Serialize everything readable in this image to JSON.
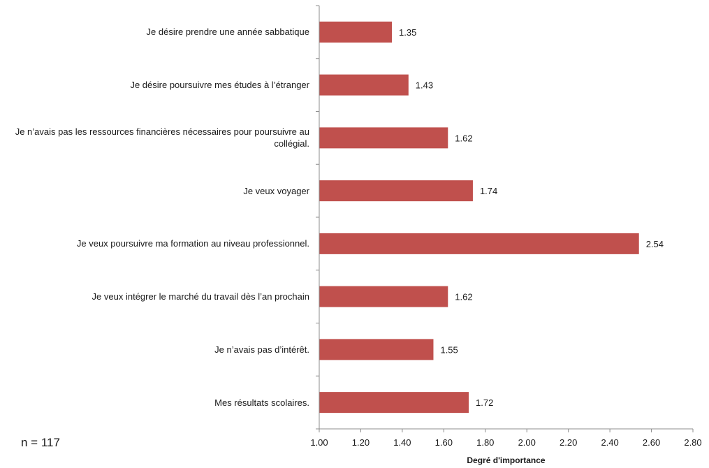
{
  "chart_data": {
    "type": "bar",
    "orientation": "horizontal",
    "categories": [
      "Je désire prendre une année sabbatique",
      "Je désire poursuivre mes études à l’étranger",
      "Je n’avais pas les ressources financières nécessaires pour poursuivre au collégial.",
      "Je veux voyager",
      "Je veux poursuivre ma formation au niveau professionnel.",
      "Je veux intégrer le marché du travail dès l’an prochain",
      "Je n’avais pas d’intérêt.",
      "Mes résultats scolaires."
    ],
    "values": [
      1.35,
      1.43,
      1.62,
      1.74,
      2.54,
      1.62,
      1.55,
      1.72
    ],
    "data_labels": [
      "1.35",
      "1.43",
      "1.62",
      "1.74",
      "2.54",
      "1.62",
      "1.55",
      "1.72"
    ],
    "xlabel": "Degré d'importance",
    "ylabel": "",
    "xlim": [
      1.0,
      2.8
    ],
    "x_ticks": [
      "1.00",
      "1.20",
      "1.40",
      "1.60",
      "1.80",
      "2.00",
      "2.20",
      "2.40",
      "2.60",
      "2.80"
    ],
    "grid": false,
    "legend": "none",
    "bar_color": "#c0504d",
    "note": "n = 117"
  }
}
